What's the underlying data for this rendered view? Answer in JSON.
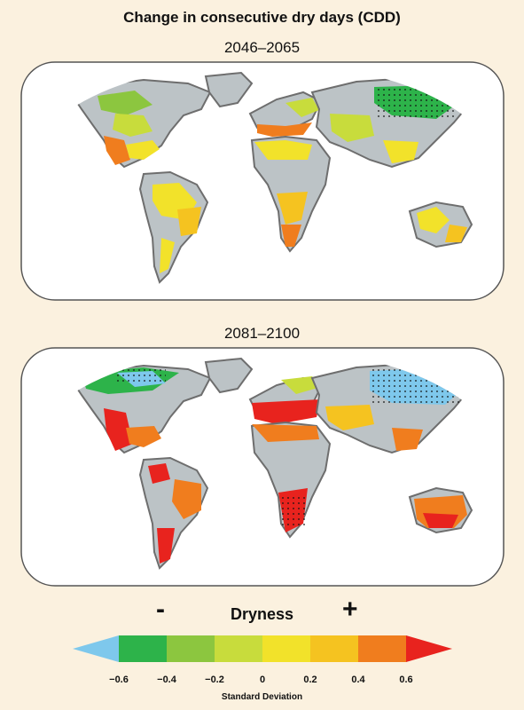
{
  "title": "Change in consecutive dry days (CDD)",
  "panels": [
    {
      "period": "2046–2065"
    },
    {
      "period": "2081–2100"
    }
  ],
  "legend": {
    "label": "Dryness",
    "minus": "-",
    "plus": "+",
    "ticks": [
      "−0.6",
      "−0.4",
      "−0.2",
      "0",
      "0.2",
      "0.4",
      "0.6"
    ],
    "unit": "Standard Deviation",
    "colors": [
      "#7ec8ec",
      "#2db34a",
      "#8cc63f",
      "#c8dc3c",
      "#f2e22a",
      "#f5c320",
      "#f07d1e",
      "#e8231e"
    ]
  },
  "colors": {
    "background": "#fbf1df",
    "land_neutral": "#bcc3c6",
    "coast": "#6e6e6e",
    "ocean": "#ffffff"
  }
}
